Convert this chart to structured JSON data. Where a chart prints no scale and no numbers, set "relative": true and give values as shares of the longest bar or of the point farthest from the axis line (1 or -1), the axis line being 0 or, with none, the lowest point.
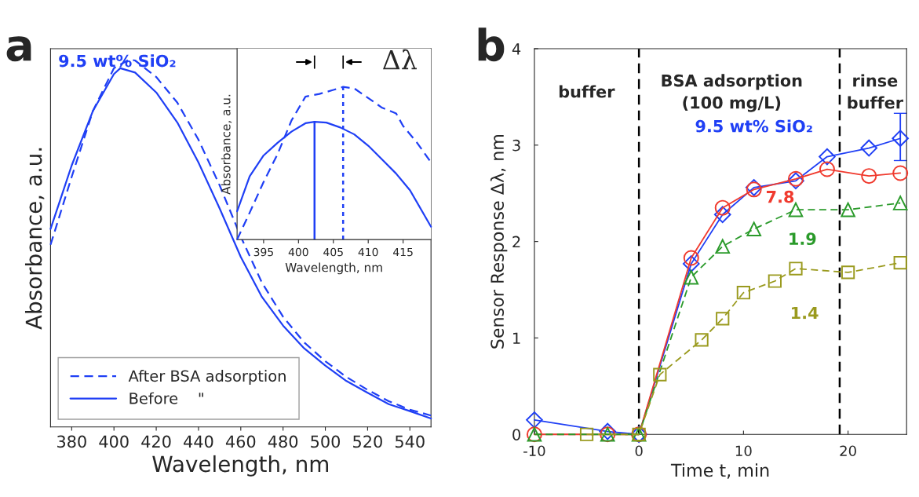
{
  "chart_data": [
    {
      "type": "line",
      "title": "a",
      "xlabel": "Wavelength, nm",
      "ylabel": "Absorbance, a.u.",
      "relative": true,
      "xlim": [
        370,
        550
      ],
      "xticks": [
        380,
        400,
        420,
        440,
        460,
        480,
        500,
        520,
        540
      ],
      "grid": false,
      "legend": "bottom left",
      "tick_labels": "x",
      "annotations": [
        "9.5 wt% SiO₂"
      ],
      "series": [
        {
          "name": "After BSA adsorption",
          "color": "#1f3ff5",
          "line_style": "dashed",
          "x": [
            370,
            380,
            390,
            400,
            407,
            410,
            420,
            430,
            440,
            450,
            460,
            470,
            480,
            490,
            500,
            510,
            520,
            530,
            540,
            550
          ],
          "values": [
            0.496,
            0.681,
            0.86,
            0.977,
            1.0,
            0.998,
            0.953,
            0.883,
            0.782,
            0.658,
            0.518,
            0.393,
            0.3,
            0.23,
            0.179,
            0.136,
            0.101,
            0.07,
            0.047,
            0.031
          ]
        },
        {
          "name": "Before    \"",
          "color": "#1f3ff5",
          "line_style": "solid",
          "x": [
            370,
            380,
            390,
            400,
            403,
            410,
            420,
            430,
            440,
            450,
            460,
            470,
            480,
            490,
            500,
            510,
            520,
            530,
            540,
            550
          ],
          "values": [
            0.539,
            0.712,
            0.86,
            0.961,
            0.977,
            0.965,
            0.911,
            0.829,
            0.72,
            0.595,
            0.463,
            0.354,
            0.276,
            0.214,
            0.167,
            0.125,
            0.093,
            0.062,
            0.043,
            0.023
          ]
        }
      ]
    },
    {
      "type": "line",
      "xlabel": "Wavelength, nm",
      "ylabel": "Absorbance, a.u.",
      "relative": true,
      "xlim": [
        391.2,
        419
      ],
      "xticks": [
        395,
        400,
        405,
        410,
        415
      ],
      "grid": false,
      "tick_labels": "x",
      "annotations": [
        "Δλ"
      ],
      "ref_lines": [
        {
          "axis": "x",
          "value": 406.4,
          "color": "#1f3ff5",
          "line_style": "dotted"
        },
        {
          "axis": "x",
          "value": 402.3,
          "color": "#1f3ff5",
          "line_style": "solid"
        }
      ],
      "series": [
        {
          "color": "#1f3ff5",
          "line_style": "dashed",
          "x": [
            391.2,
            393,
            395,
            397,
            399,
            401,
            403,
            405,
            406.4,
            408,
            410,
            412,
            414,
            415,
            417,
            419
          ],
          "values": [
            0.0,
            0.176,
            0.377,
            0.56,
            0.78,
            0.936,
            0.954,
            0.98,
            1.0,
            0.99,
            0.927,
            0.863,
            0.826,
            0.744,
            0.634,
            0.505
          ]
        },
        {
          "color": "#1f3ff5",
          "line_style": "solid",
          "x": [
            391.2,
            393,
            395,
            397,
            399,
            401,
            402.3,
            404,
            406,
            408,
            410,
            412,
            414,
            416,
            419
          ],
          "values": [
            0.185,
            0.414,
            0.551,
            0.634,
            0.707,
            0.762,
            0.771,
            0.766,
            0.734,
            0.689,
            0.615,
            0.524,
            0.432,
            0.322,
            0.084
          ]
        }
      ]
    },
    {
      "type": "line",
      "title": "b",
      "xlabel": "Time t, min",
      "ylabel": "Sensor Response Δλ, nm",
      "xlim": [
        -10,
        25.6
      ],
      "xticks": [
        -10,
        0,
        10,
        20
      ],
      "ylim": [
        0,
        4
      ],
      "yticks": [
        0,
        1,
        2,
        3,
        4
      ],
      "grid": false,
      "legend": false,
      "ref_lines": [
        {
          "axis": "x",
          "value": 0,
          "color": "#000000",
          "line_style": "dashed"
        },
        {
          "axis": "x",
          "value": 19.2,
          "color": "#000000",
          "line_style": "dashed"
        }
      ],
      "annotations": [
        "buffer",
        "BSA adsorption\n(100 mg/L)",
        "rinse\nbuffer"
      ],
      "series": [
        {
          "name": "9.5 wt% SiO₂",
          "color": "#1f3ff5",
          "marker": "diamond",
          "line_style": "solid",
          "x": [
            -10,
            -3,
            0,
            5,
            8,
            11,
            15,
            18,
            22,
            25
          ],
          "values": [
            0.15,
            0.03,
            0.0,
            1.77,
            2.28,
            2.56,
            2.63,
            2.88,
            2.97,
            3.07
          ],
          "errors": [
            null,
            null,
            null,
            null,
            null,
            null,
            null,
            null,
            null,
            [
              2.84,
              3.33
            ]
          ]
        },
        {
          "name": "7.8",
          "color": "#f03a2e",
          "marker": "circle",
          "line_style": "solid",
          "x": [
            -10,
            -3,
            0,
            5,
            8,
            11,
            15,
            18,
            22,
            25
          ],
          "values": [
            0.0,
            0.0,
            0.0,
            1.83,
            2.35,
            2.54,
            2.65,
            2.75,
            2.68,
            2.71
          ]
        },
        {
          "name": "1.9",
          "color": "#2a9a2a",
          "marker": "triangle",
          "line_style": "dashed",
          "x": [
            -10,
            -3,
            0,
            5,
            8,
            11,
            15,
            20,
            25
          ],
          "values": [
            0.0,
            0.0,
            0.0,
            1.63,
            1.95,
            2.13,
            2.33,
            2.33,
            2.4
          ]
        },
        {
          "name": "1.4",
          "color": "#9a9a1e",
          "marker": "square",
          "line_style": "dashed",
          "x": [
            -5,
            0,
            2,
            6,
            8,
            10,
            13,
            15,
            20,
            25
          ],
          "values": [
            0.0,
            0.0,
            0.62,
            0.98,
            1.2,
            1.47,
            1.59,
            1.72,
            1.68,
            1.78
          ]
        }
      ]
    }
  ]
}
